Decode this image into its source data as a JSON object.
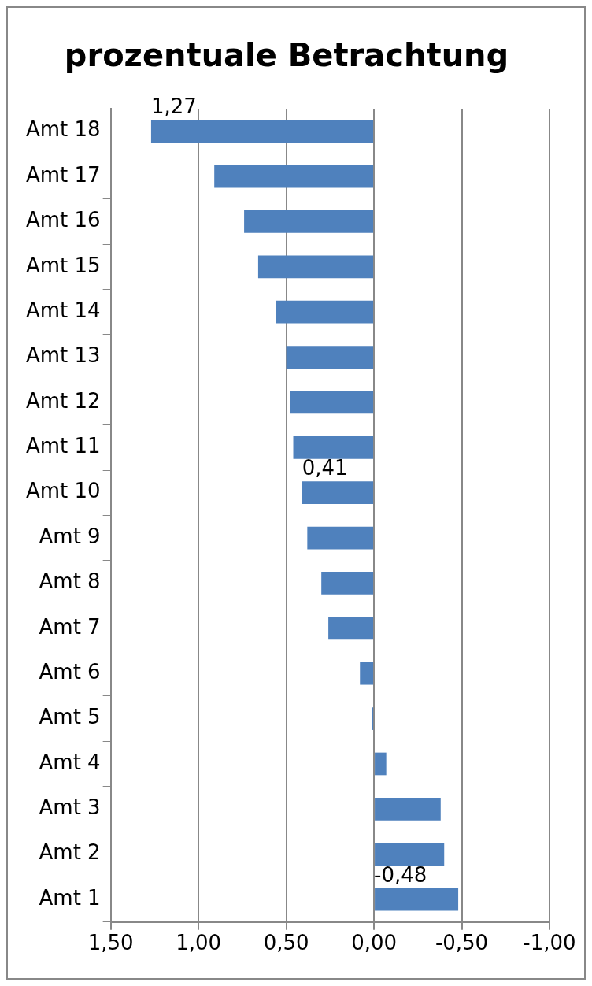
{
  "chart_data": {
    "type": "bar",
    "title": "prozentuale Betrachtung",
    "orientation": "horizontal",
    "categories": [
      "Amt 18",
      "Amt 17",
      "Amt 16",
      "Amt 15",
      "Amt 14",
      "Amt 13",
      "Amt 12",
      "Amt 11",
      "Amt 10",
      "Amt 9",
      "Amt 8",
      "Amt 7",
      "Amt 6",
      "Amt 5",
      "Amt 4",
      "Amt 3",
      "Amt 2",
      "Amt 1"
    ],
    "values": [
      1.27,
      0.91,
      0.74,
      0.66,
      0.56,
      0.5,
      0.48,
      0.46,
      0.41,
      0.38,
      0.3,
      0.26,
      0.08,
      0.01,
      -0.07,
      -0.38,
      -0.4,
      -0.48
    ],
    "value_labels": [
      "1,27",
      null,
      null,
      null,
      null,
      null,
      null,
      null,
      "0,41",
      null,
      null,
      null,
      null,
      null,
      null,
      null,
      null,
      "-0,48"
    ],
    "color": "#4f81bd",
    "xlim": [
      1.5,
      -1
    ],
    "xticks": [
      {
        "value": 1.5,
        "label": "1,50"
      },
      {
        "value": 1,
        "label": "1,00"
      },
      {
        "value": 0.5,
        "label": "0,50"
      },
      {
        "value": 0,
        "label": "0,00"
      },
      {
        "value": -0.5,
        "label": "-0,50"
      },
      {
        "value": -1,
        "label": "-1,00"
      }
    ],
    "grid": "x",
    "legend": false
  }
}
